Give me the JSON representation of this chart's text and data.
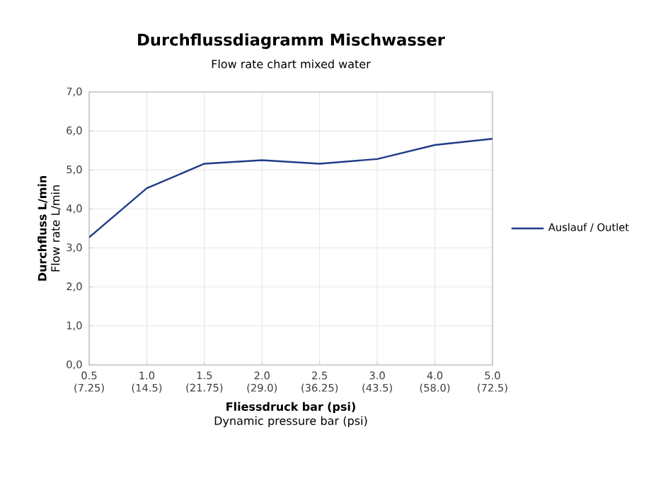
{
  "chart_data": {
    "type": "line",
    "title": "Durchflussdiagramm Mischwasser",
    "subtitle": "Flow rate chart mixed water",
    "xlabel": "**Fliessdruck bar (psi)** Dynamic pressure bar (psi)",
    "ylabel": "**Durchfluss L/min** Flow rate L/min",
    "categories": [
      "0.5 (7.25)",
      "1.0 (14.5)",
      "1.5 (21.75)",
      "2.0 (29.0)",
      "2.5 (36.25)",
      "3.0 (43.5)",
      "4.0 (58.0)",
      "5.0 (72.5)"
    ],
    "series": [
      {
        "name": "Auslauf / Outlet",
        "color": "#1f3c88",
        "values": [
          3.27,
          4.53,
          5.16,
          5.25,
          5.16,
          5.28,
          5.64,
          5.8
        ]
      }
    ],
    "ylim": [
      0,
      7
    ],
    "yticks": [
      {
        "value": 0,
        "label": "0,0"
      },
      {
        "value": 1,
        "label": "1,0"
      },
      {
        "value": 2,
        "label": "2,0"
      },
      {
        "value": 3,
        "label": "3,0"
      },
      {
        "value": 4,
        "label": "4,0"
      },
      {
        "value": 5,
        "label": "5,0"
      },
      {
        "value": 6,
        "label": "6,0"
      },
      {
        "value": 7,
        "label": "7,0"
      }
    ],
    "grid": true,
    "legend": "right",
    "marker": "none",
    "line_style": "solid"
  }
}
